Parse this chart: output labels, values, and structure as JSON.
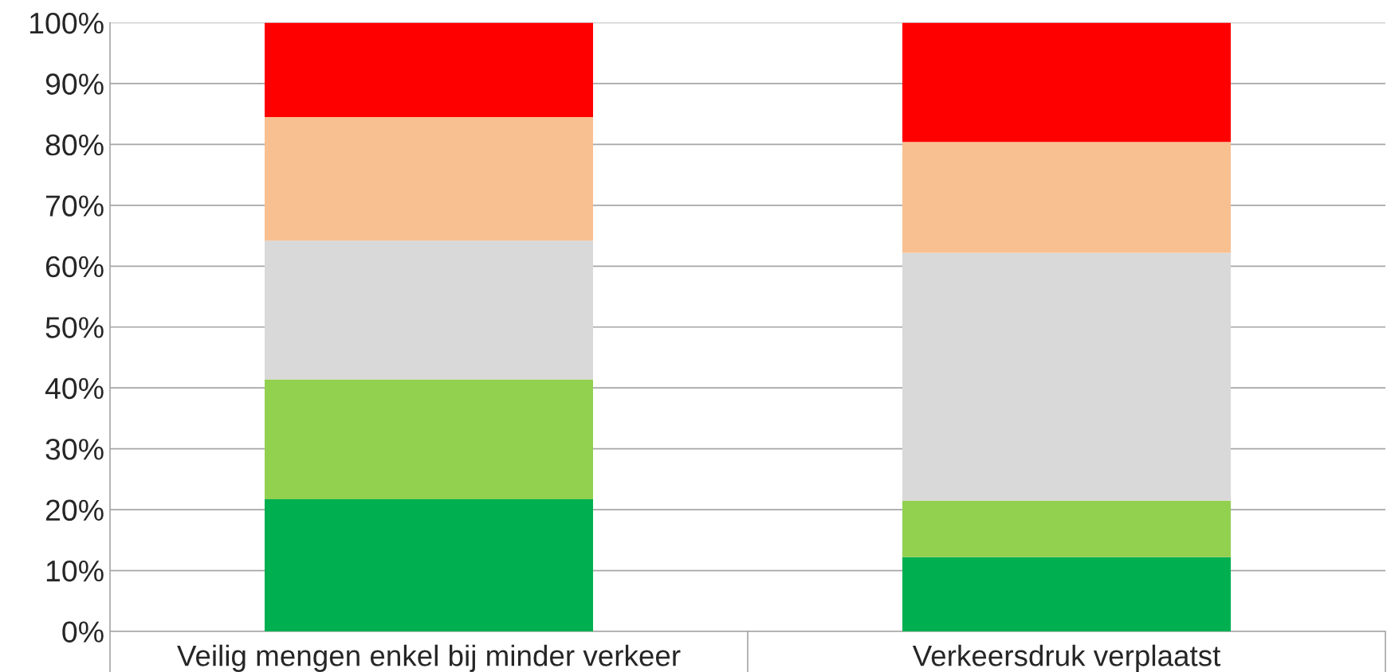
{
  "chart_data": {
    "type": "bar",
    "stacked": true,
    "categories": [
      "Veilig mengen enkel bij minder verkeer",
      "Verkeersdruk verplaatst"
    ],
    "series": [
      {
        "color": "#00b050",
        "values": [
          21.7,
          12.2
        ]
      },
      {
        "color": "#92d050",
        "values": [
          19.7,
          9.3
        ]
      },
      {
        "color": "#d9d9d9",
        "values": [
          22.8,
          40.7
        ]
      },
      {
        "color": "#f8c090",
        "values": [
          20.3,
          18.2
        ]
      },
      {
        "color": "#ff0000",
        "values": [
          15.5,
          19.6
        ]
      }
    ],
    "ylim": [
      0,
      100
    ],
    "yticks": [
      {
        "value": 0,
        "label": "0%"
      },
      {
        "value": 10,
        "label": "10%"
      },
      {
        "value": 20,
        "label": "20%"
      },
      {
        "value": 30,
        "label": "30%"
      },
      {
        "value": 40,
        "label": "40%"
      },
      {
        "value": 50,
        "label": "50%"
      },
      {
        "value": 60,
        "label": "60%"
      },
      {
        "value": 70,
        "label": "70%"
      },
      {
        "value": 80,
        "label": "80%"
      },
      {
        "value": 90,
        "label": "90%"
      },
      {
        "value": 100,
        "label": "100%"
      }
    ],
    "grid": "y"
  }
}
